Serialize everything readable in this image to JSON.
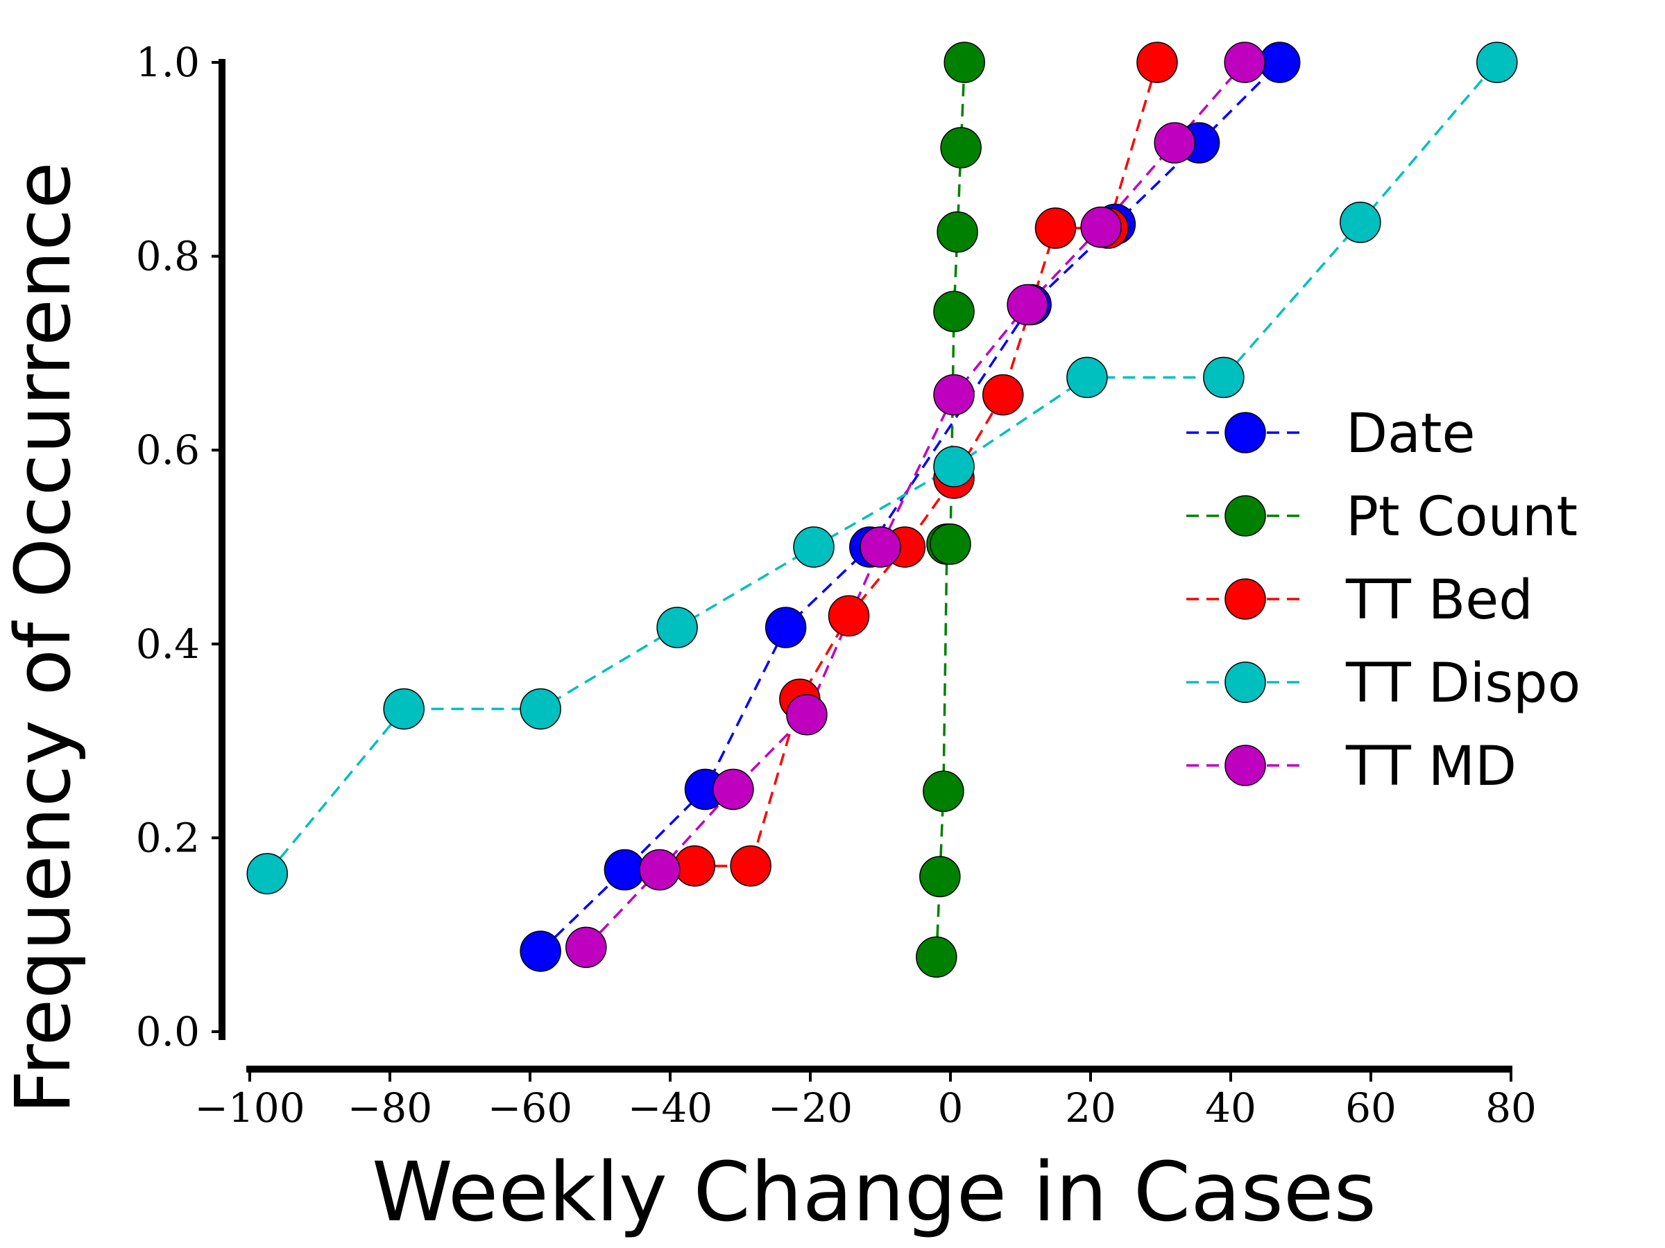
{
  "chart_data": {
    "type": "line",
    "xlabel": "Weekly Change in Cases",
    "ylabel": "Frequency of Occurrence",
    "xlim": [
      -100,
      80
    ],
    "ylim": [
      0.0,
      1.0
    ],
    "x_ticks": [
      -100,
      -80,
      -60,
      -40,
      -20,
      0,
      20,
      40,
      60,
      80
    ],
    "x_tick_labels": [
      "−100",
      "−80",
      "−60",
      "−40",
      "−20",
      "0",
      "20",
      "40",
      "60",
      "80"
    ],
    "y_ticks": [
      0.0,
      0.2,
      0.4,
      0.6,
      0.8,
      1.0
    ],
    "y_tick_labels": [
      "0.0",
      "0.2",
      "0.4",
      "0.6",
      "0.8",
      "1.0"
    ],
    "legend_position": "right",
    "grid": false,
    "series": [
      {
        "name": "Date",
        "color": "#0000ff",
        "x": [
          -58.5,
          -46.5,
          -35,
          -23.5,
          -11.5,
          11.5,
          23.5,
          35.5,
          47
        ],
        "y": [
          0.083,
          0.167,
          0.25,
          0.417,
          0.5,
          0.75,
          0.833,
          0.917,
          1.0
        ]
      },
      {
        "name": "Pt Count",
        "color": "#008000",
        "x": [
          -2,
          -1.5,
          -1,
          -0.5,
          0,
          0.5,
          1,
          1.5,
          2
        ],
        "y": [
          0.077,
          0.16,
          0.248,
          0.503,
          0.503,
          0.743,
          0.825,
          0.912,
          1.0
        ]
      },
      {
        "name": "TT Bed",
        "color": "#ff0000",
        "x": [
          -36.5,
          -28.5,
          -21.5,
          -14.5,
          -6.5,
          0.5,
          7.5,
          15,
          22.5,
          29.5
        ],
        "y": [
          0.171,
          0.171,
          0.343,
          0.429,
          0.5,
          0.571,
          0.657,
          0.829,
          0.829,
          1.0
        ]
      },
      {
        "name": "TT Dispo",
        "color": "#00bfbf",
        "x": [
          -97.5,
          -78,
          -58.5,
          -39,
          -19.5,
          0.5,
          19.5,
          39,
          58.5,
          78
        ],
        "y": [
          0.163,
          0.333,
          0.333,
          0.417,
          0.5,
          0.583,
          0.675,
          0.675,
          0.835,
          1.0
        ]
      },
      {
        "name": "TT MD",
        "color": "#bf00bf",
        "x": [
          -52,
          -41.5,
          -31,
          -20.5,
          -10,
          0.5,
          11,
          21.5,
          32,
          42
        ],
        "y": [
          0.087,
          0.167,
          0.25,
          0.327,
          0.5,
          0.657,
          0.75,
          0.83,
          0.917,
          1.0
        ]
      }
    ]
  }
}
